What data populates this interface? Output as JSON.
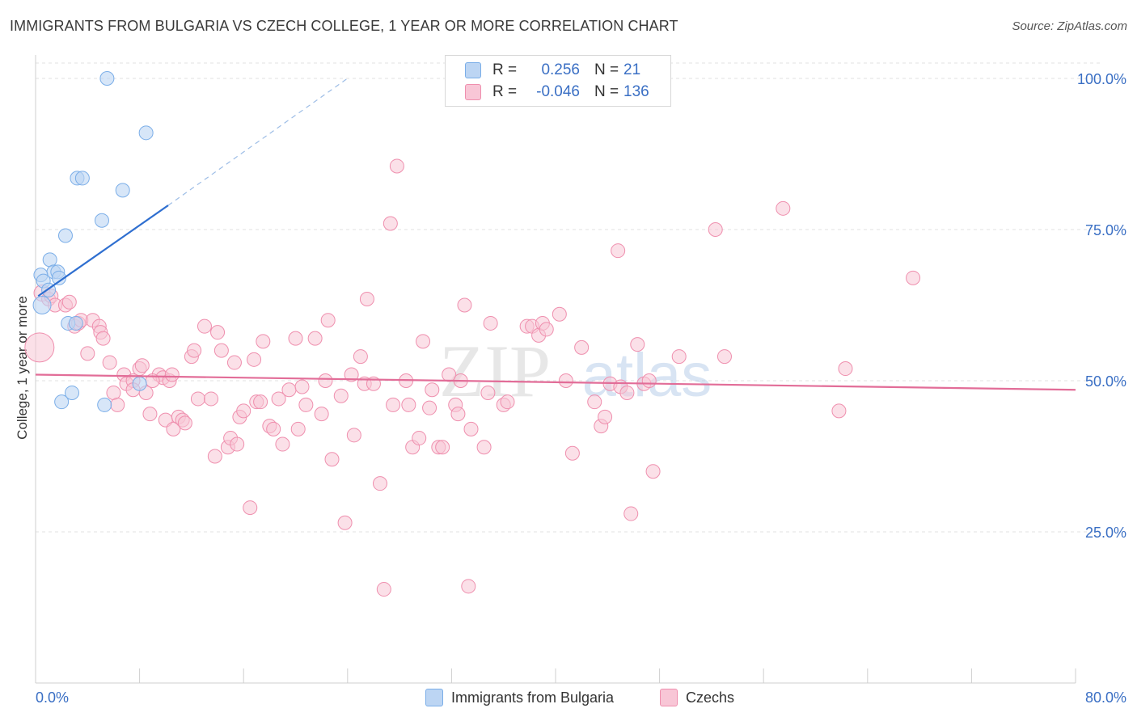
{
  "title": "IMMIGRANTS FROM BULGARIA VS CZECH COLLEGE, 1 YEAR OR MORE CORRELATION CHART",
  "source": "Source: ZipAtlas.com",
  "colors": {
    "blue": "#7baee8",
    "blue_fill": "#bcd5f3",
    "blue_line": "#2f6fd0",
    "pink": "#ef8fae",
    "pink_fill": "#f8c6d6",
    "pink_line": "#e26d98",
    "axis_text": "#3a6fc4"
  },
  "legend": {
    "rows": [
      {
        "r_label": "R =",
        "r_value": "0.256",
        "n_label": "N =",
        "n_value": "21"
      },
      {
        "r_label": "R =",
        "r_value": "-0.046",
        "n_label": "N =",
        "n_value": "136"
      }
    ]
  },
  "bottom_legend": {
    "series1": "Immigrants from Bulgaria",
    "series2": "Czechs"
  },
  "watermark": {
    "zip": "ZIP",
    "atlas": "atlas"
  },
  "chart_data": {
    "type": "scatter",
    "title": "IMMIGRANTS FROM BULGARIA VS CZECH COLLEGE, 1 YEAR OR MORE CORRELATION CHART",
    "xlabel": "",
    "ylabel": "College, 1 year or more",
    "xlim": [
      0,
      80
    ],
    "ylim": [
      0,
      105
    ],
    "x_tick_labels": [
      "0.0%",
      "80.0%"
    ],
    "y_ticks": [
      25,
      50,
      75,
      100
    ],
    "y_tick_labels": [
      "25.0%",
      "50.0%",
      "75.0%",
      "100.0%"
    ],
    "series": [
      {
        "name": "Immigrants from Bulgaria",
        "r": 0.256,
        "n": 21,
        "trend": {
          "x0": 0.2,
          "y0": 64.0,
          "x1": 10.2,
          "y1": 79.0,
          "dash_x1": 24.0,
          "dash_y1": 100.0
        },
        "points": [
          [
            5.5,
            100.0
          ],
          [
            8.5,
            91.0
          ],
          [
            3.2,
            83.5
          ],
          [
            3.6,
            83.5
          ],
          [
            6.7,
            81.5
          ],
          [
            5.1,
            76.5
          ],
          [
            2.3,
            74.0
          ],
          [
            1.1,
            70.0
          ],
          [
            1.4,
            68.0
          ],
          [
            1.7,
            68.0
          ],
          [
            0.4,
            67.5
          ],
          [
            1.8,
            67.0
          ],
          [
            0.6,
            66.5
          ],
          [
            1.0,
            65.0
          ],
          [
            0.5,
            62.5
          ],
          [
            2.5,
            59.5
          ],
          [
            3.1,
            59.5
          ],
          [
            8.0,
            49.5
          ],
          [
            2.8,
            48.0
          ],
          [
            2.0,
            46.5
          ],
          [
            5.3,
            46.0
          ]
        ]
      },
      {
        "name": "Czechs",
        "r": -0.046,
        "n": 136,
        "trend": {
          "x0": 0.0,
          "y0": 51.0,
          "x1": 80.0,
          "y1": 48.5
        },
        "points": [
          [
            0.3,
            55.5
          ],
          [
            0.5,
            64.5
          ],
          [
            1.0,
            63.5
          ],
          [
            1.2,
            64.0
          ],
          [
            1.5,
            62.5
          ],
          [
            2.3,
            62.5
          ],
          [
            2.6,
            63.0
          ],
          [
            3.0,
            59.0
          ],
          [
            3.3,
            59.5
          ],
          [
            3.5,
            60.0
          ],
          [
            4.4,
            60.0
          ],
          [
            4.9,
            59.0
          ],
          [
            5.0,
            58.0
          ],
          [
            5.2,
            57.0
          ],
          [
            4.0,
            54.5
          ],
          [
            5.7,
            53.0
          ],
          [
            6.0,
            48.0
          ],
          [
            6.3,
            46.0
          ],
          [
            6.8,
            51.0
          ],
          [
            7.0,
            49.5
          ],
          [
            7.5,
            50.0
          ],
          [
            7.5,
            48.5
          ],
          [
            8.0,
            52.0
          ],
          [
            8.2,
            52.5
          ],
          [
            8.5,
            48.0
          ],
          [
            8.8,
            44.5
          ],
          [
            9.5,
            51.0
          ],
          [
            9.8,
            50.5
          ],
          [
            10.0,
            43.5
          ],
          [
            10.3,
            50.0
          ],
          [
            10.5,
            51.0
          ],
          [
            10.6,
            42.0
          ],
          [
            11.0,
            44.0
          ],
          [
            11.3,
            43.5
          ],
          [
            11.5,
            43.0
          ],
          [
            12.0,
            54.0
          ],
          [
            12.2,
            55.0
          ],
          [
            12.5,
            47.0
          ],
          [
            13.0,
            59.0
          ],
          [
            13.5,
            47.0
          ],
          [
            13.8,
            37.5
          ],
          [
            14.0,
            58.0
          ],
          [
            14.3,
            55.0
          ],
          [
            14.8,
            39.0
          ],
          [
            15.0,
            40.5
          ],
          [
            15.3,
            53.0
          ],
          [
            15.5,
            39.5
          ],
          [
            15.7,
            44.0
          ],
          [
            16.0,
            45.0
          ],
          [
            16.5,
            29.0
          ],
          [
            16.8,
            53.5
          ],
          [
            17.0,
            46.5
          ],
          [
            17.3,
            46.5
          ],
          [
            17.5,
            56.5
          ],
          [
            18.0,
            42.5
          ],
          [
            18.3,
            42.0
          ],
          [
            18.7,
            47.0
          ],
          [
            19.0,
            39.5
          ],
          [
            19.5,
            48.5
          ],
          [
            20.0,
            57.0
          ],
          [
            20.2,
            42.0
          ],
          [
            20.5,
            49.0
          ],
          [
            20.8,
            46.0
          ],
          [
            21.5,
            57.0
          ],
          [
            22.0,
            44.5
          ],
          [
            22.3,
            50.0
          ],
          [
            22.5,
            60.0
          ],
          [
            22.8,
            37.0
          ],
          [
            23.5,
            47.5
          ],
          [
            24.3,
            51.0
          ],
          [
            24.5,
            41.0
          ],
          [
            25.0,
            54.0
          ],
          [
            25.3,
            49.5
          ],
          [
            25.5,
            63.5
          ],
          [
            26.0,
            49.5
          ],
          [
            26.5,
            33.0
          ],
          [
            26.8,
            15.5
          ],
          [
            27.3,
            76.0
          ],
          [
            27.5,
            46.0
          ],
          [
            27.8,
            85.5
          ],
          [
            28.5,
            50.0
          ],
          [
            28.7,
            46.0
          ],
          [
            29.0,
            39.0
          ],
          [
            29.5,
            40.5
          ],
          [
            29.8,
            56.5
          ],
          [
            30.3,
            45.5
          ],
          [
            30.5,
            48.5
          ],
          [
            31.0,
            39.0
          ],
          [
            31.3,
            39.0
          ],
          [
            31.8,
            51.0
          ],
          [
            32.3,
            46.0
          ],
          [
            32.5,
            44.5
          ],
          [
            32.7,
            50.0
          ],
          [
            33.0,
            62.5
          ],
          [
            33.3,
            16.0
          ],
          [
            33.5,
            42.0
          ],
          [
            34.5,
            39.0
          ],
          [
            35.0,
            59.5
          ],
          [
            36.0,
            46.0
          ],
          [
            36.3,
            46.5
          ],
          [
            37.8,
            59.0
          ],
          [
            38.2,
            59.0
          ],
          [
            38.7,
            57.5
          ],
          [
            39.0,
            59.5
          ],
          [
            39.3,
            58.5
          ],
          [
            40.3,
            61.0
          ],
          [
            40.8,
            50.0
          ],
          [
            41.3,
            38.0
          ],
          [
            42.0,
            55.5
          ],
          [
            43.0,
            46.5
          ],
          [
            43.5,
            42.5
          ],
          [
            43.8,
            44.0
          ],
          [
            44.2,
            49.5
          ],
          [
            44.8,
            71.5
          ],
          [
            45.0,
            49.0
          ],
          [
            45.5,
            48.0
          ],
          [
            45.8,
            28.0
          ],
          [
            46.3,
            56.0
          ],
          [
            46.8,
            49.5
          ],
          [
            47.5,
            35.0
          ],
          [
            47.2,
            50.0
          ],
          [
            49.5,
            54.0
          ],
          [
            52.3,
            75.0
          ],
          [
            53.0,
            54.0
          ],
          [
            57.5,
            78.5
          ],
          [
            61.8,
            45.0
          ],
          [
            62.3,
            52.0
          ],
          [
            67.5,
            67.0
          ],
          [
            23.8,
            26.5
          ],
          [
            34.8,
            48.0
          ],
          [
            9.0,
            50.0
          ]
        ]
      }
    ]
  }
}
